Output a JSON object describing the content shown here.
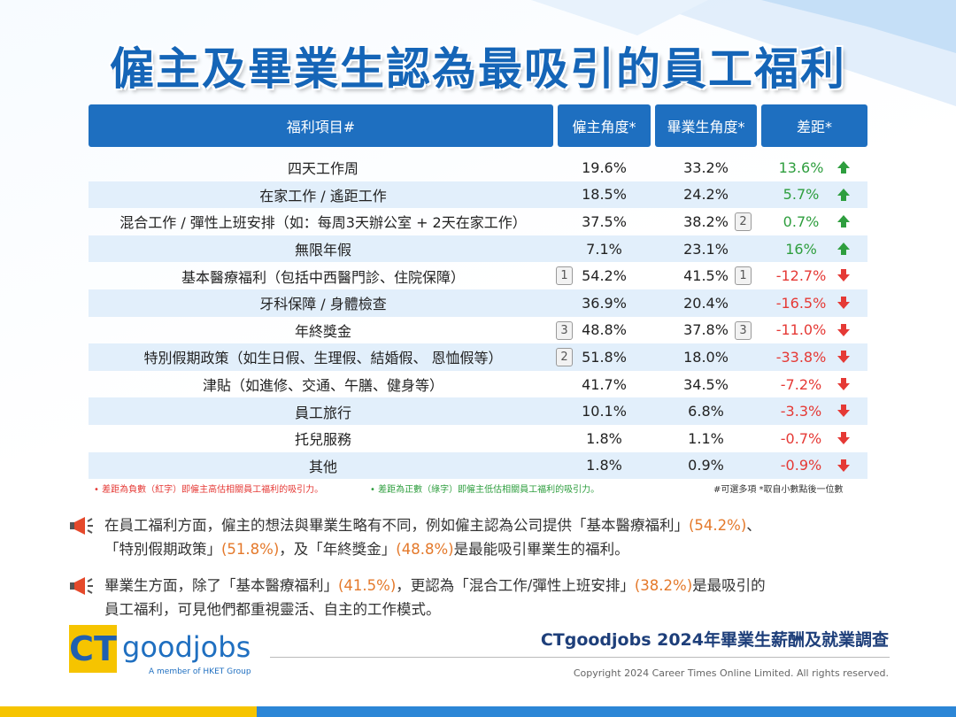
{
  "title": "僱主及畢業生認為最吸引的員工福利",
  "table": {
    "headers": [
      "福利項目#",
      "僱主角度*",
      "畢業生角度*",
      "差距*"
    ],
    "rows": [
      {
        "item": "四天工作周",
        "employer": "19.6%",
        "graduate": "33.2%",
        "gap": "13.6%"
      },
      {
        "item": "在家工作 / 遙距工作",
        "employer": "18.5%",
        "graduate": "24.2%",
        "gap": "5.7%"
      },
      {
        "item": "混合工作 / 彈性上班安排（如：每周3天辦公室 + 2天在家工作）",
        "employer": "37.5%",
        "graduate": "38.2%",
        "graduate_rank": "2",
        "gap": "0.7%"
      },
      {
        "item": "無限年假",
        "employer": "7.1%",
        "graduate": "23.1%",
        "gap": "16%"
      },
      {
        "item": "基本醫療福利（包括中西醫門診、住院保障）",
        "employer": "54.2%",
        "employer_rank": "1",
        "graduate": "41.5%",
        "graduate_rank": "1",
        "gap": "-12.7%"
      },
      {
        "item": "牙科保障 / 身體檢查",
        "employer": "36.9%",
        "graduate": "20.4%",
        "gap": "-16.5%"
      },
      {
        "item": "年終獎金",
        "employer": "48.8%",
        "employer_rank": "3",
        "graduate": "37.8%",
        "graduate_rank": "3",
        "gap": "-11.0%"
      },
      {
        "item": "特別假期政策（如生日假、生理假、結婚假、 恩恤假等）",
        "employer": "51.8%",
        "employer_rank": "2",
        "graduate": "18.0%",
        "gap": "-33.8%"
      },
      {
        "item": "津貼（如進修、交通、午膳、健身等）",
        "employer": "41.7%",
        "graduate": "34.5%",
        "gap": "-7.2%"
      },
      {
        "item": "員工旅行",
        "employer": "10.1%",
        "graduate": "6.8%",
        "gap": "-3.3%"
      },
      {
        "item": "托兒服務",
        "employer": "1.8%",
        "graduate": "1.1%",
        "gap": "-0.7%"
      },
      {
        "item": "其他",
        "employer": "1.8%",
        "graduate": "0.9%",
        "gap": "-0.9%"
      }
    ],
    "notes": [
      "• 差距為負數（紅字）即僱主高估相關員工福利的吸引力。",
      "• 差距為正數（綠字）即僱主低估相關員工福利的吸引力。",
      "#可選多項 *取自小數點後一位數"
    ]
  },
  "paragraphs": [
    [
      [
        {
          "text": "在員工福利方面，僱主的想法與畢業生略有不同，例如僱主認為公司提供「基本醫療福利」"
        },
        {
          "text": "(54.2%)",
          "highlight": true
        },
        {
          "text": "、"
        }
      ],
      [
        {
          "text": "「特別假期政策」"
        },
        {
          "text": "(51.8%)",
          "highlight": true
        },
        {
          "text": "，及「年終獎金」"
        },
        {
          "text": "(48.8%)",
          "highlight": true
        },
        {
          "text": "是最能吸引畢業生的福利。"
        }
      ]
    ],
    [
      [
        {
          "text": "畢業生方面，除了「基本醫療福利」"
        },
        {
          "text": "(41.5%)",
          "highlight": true
        },
        {
          "text": "，更認為「混合工作/彈性上班安排」"
        },
        {
          "text": "(38.2%)",
          "highlight": true
        },
        {
          "text": "是最吸引的"
        }
      ],
      [
        {
          "text": "員工福利，可見他們都重視靈活、自主的工作模式。"
        }
      ]
    ]
  ],
  "logo": {
    "ct": "CT",
    "name": "goodjobs",
    "tagline": "A member of HKET Group"
  },
  "footer": {
    "survey": "CTgoodjobs 2024年畢業生薪酬及就業調查",
    "copyright": "Copyright 2024 Career Times Online Limited. All rights reserved."
  }
}
